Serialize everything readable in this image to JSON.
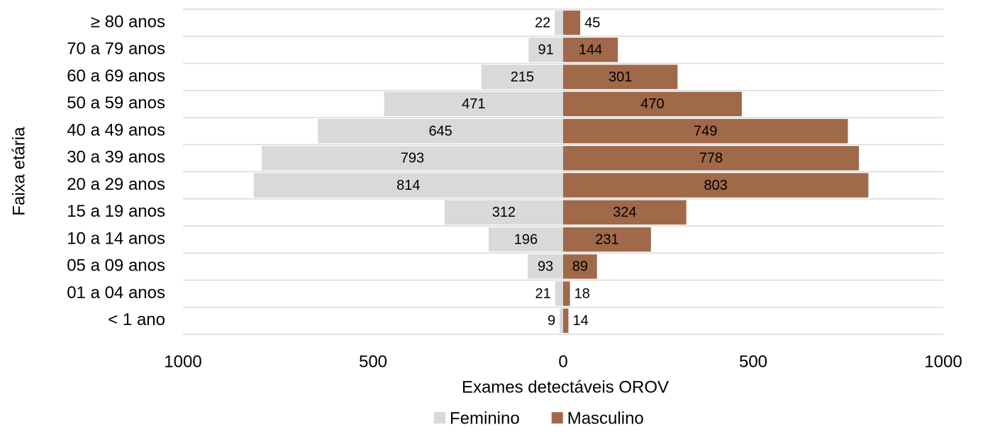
{
  "chart_data": {
    "type": "pyramid",
    "xlabel": "Exames detectáveis OROV",
    "ylabel": "Faixa etária",
    "categories": [
      "≥ 80 anos",
      "70 a 79 anos",
      "60 a 69 anos",
      "50 a 59 anos",
      "40 a 49 anos",
      "30 a 39 anos",
      "20 a 29 anos",
      "15 a 19 anos",
      "10 a 14 anos",
      "05 a 09 anos",
      "01 a 04 anos",
      "< 1 ano"
    ],
    "series": [
      {
        "name": "Feminino",
        "color": "#d9d9d9",
        "values": [
          -22,
          -91,
          -215,
          -471,
          -645,
          -793,
          -814,
          -312,
          -196,
          -93,
          -21,
          -9
        ],
        "value_labels": [
          "22",
          "91",
          "215",
          "471",
          "645",
          "793",
          "814",
          "312",
          "196",
          "93",
          "21",
          "9"
        ]
      },
      {
        "name": "Masculino",
        "color": "#a0694a",
        "values": [
          45,
          144,
          301,
          470,
          749,
          778,
          803,
          324,
          231,
          89,
          18,
          14
        ]
      }
    ],
    "xlim": [
      -1000,
      1000
    ],
    "xticks": [
      {
        "value": -1000,
        "label": "1000"
      },
      {
        "value": -500,
        "label": "500"
      },
      0,
      500,
      1000
    ],
    "legend": "bottom"
  }
}
